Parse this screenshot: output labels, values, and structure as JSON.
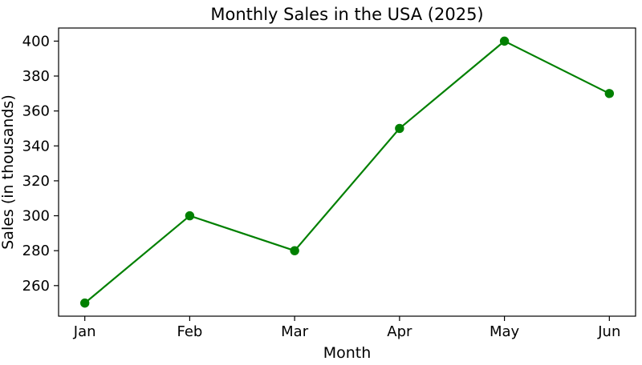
{
  "chart_data": {
    "type": "line",
    "title": "Monthly Sales in the USA (2025)",
    "xlabel": "Month",
    "ylabel": "Sales (in thousands)",
    "categories": [
      "Jan",
      "Feb",
      "Mar",
      "Apr",
      "May",
      "Jun"
    ],
    "series": [
      {
        "name": "Monthly Sales",
        "values": [
          250,
          300,
          280,
          350,
          400,
          370
        ]
      }
    ],
    "line_color": "#008000",
    "marker": "circle",
    "marker_color": "#008000",
    "ylim": [
      242.5,
      407.5
    ],
    "yticks": [
      260,
      280,
      300,
      320,
      340,
      360,
      380,
      400
    ],
    "x_margin": 0.25,
    "grid": false,
    "legend": null,
    "axis_color": "#000000"
  }
}
